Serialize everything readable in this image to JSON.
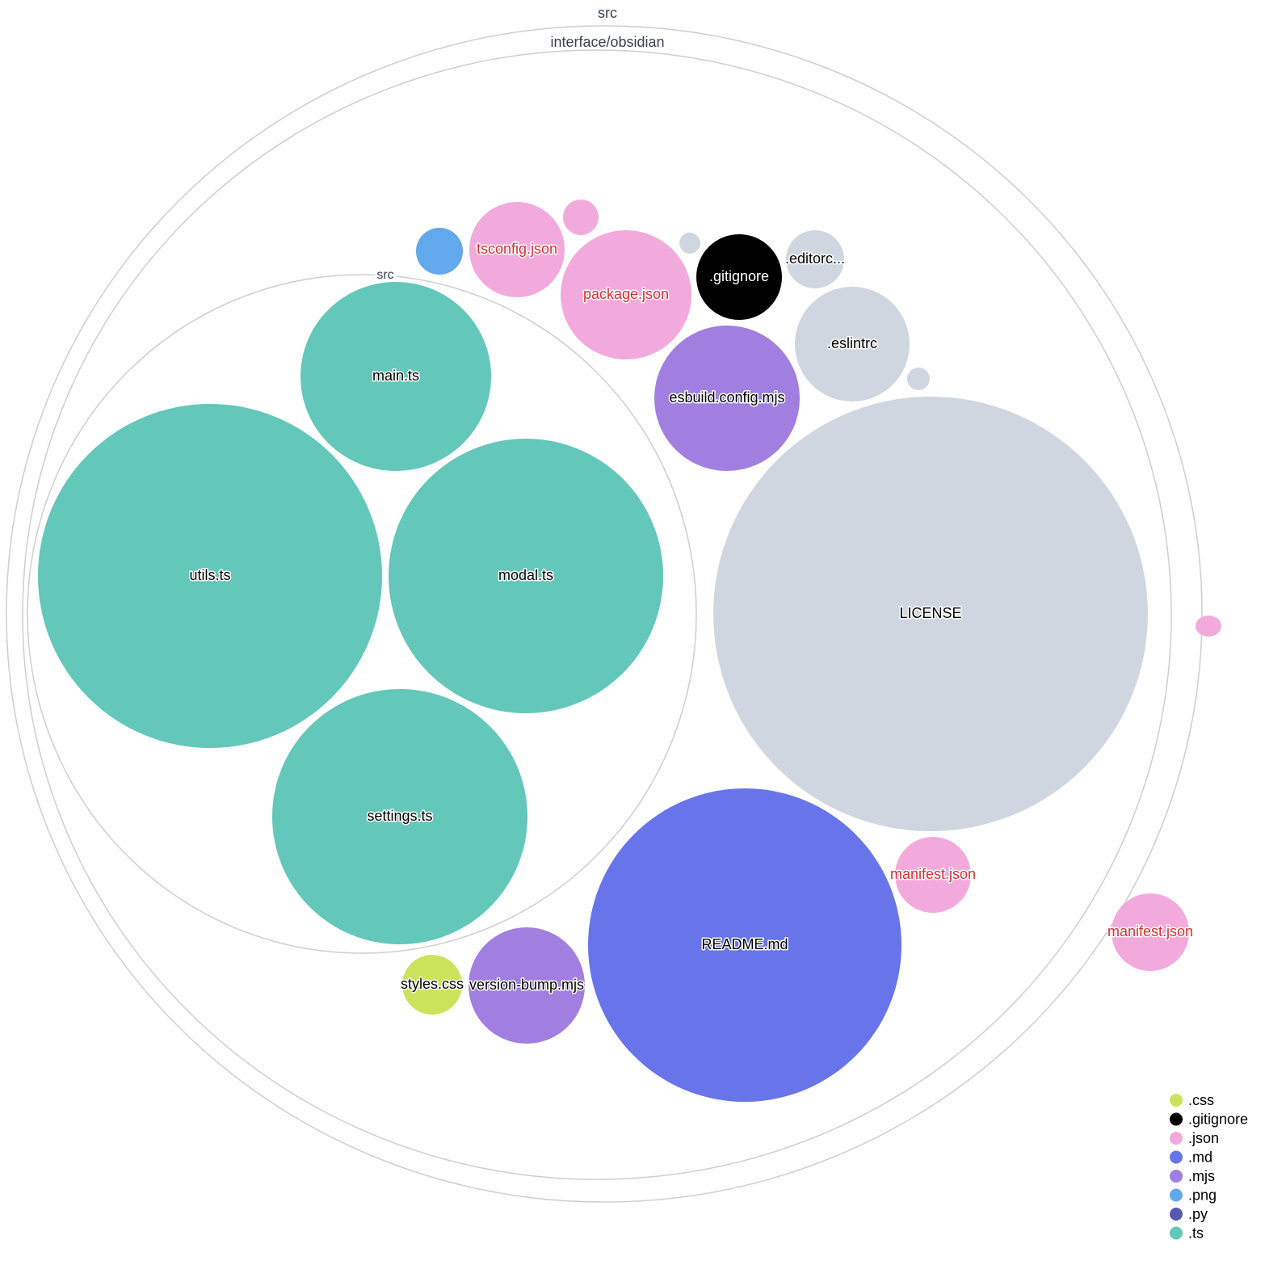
{
  "rings": [
    {
      "label": "src"
    },
    {
      "label": "interface/obsidian"
    },
    {
      "label": "src"
    }
  ],
  "files": [
    {
      "name": "main.ts",
      "ext": ".ts"
    },
    {
      "name": "utils.ts",
      "ext": ".ts"
    },
    {
      "name": "modal.ts",
      "ext": ".ts"
    },
    {
      "name": "settings.ts",
      "ext": ".ts"
    },
    {
      "name": "LICENSE",
      "ext": ""
    },
    {
      "name": "README.md",
      "ext": ".md"
    },
    {
      "name": "esbuild.config.mjs",
      "ext": ".mjs"
    },
    {
      "name": ".eslintrc",
      "ext": ""
    },
    {
      "name": "package.json",
      "ext": ".json"
    },
    {
      "name": "tsconfig.json",
      "ext": ".json"
    },
    {
      "name": "",
      "ext": ".png"
    },
    {
      "name": "",
      "ext": ".json"
    },
    {
      "name": "",
      "ext": ""
    },
    {
      "name": ".gitignore",
      "ext": ".gitignore"
    },
    {
      "name": ".editorc...",
      "ext": ""
    },
    {
      "name": "",
      "ext": ""
    },
    {
      "name": "manifest.json",
      "ext": ".json"
    },
    {
      "name": "manifest.json",
      "ext": ".json"
    },
    {
      "name": "",
      "ext": ".json"
    },
    {
      "name": "version-bump.mjs",
      "ext": ".mjs"
    },
    {
      "name": "styles.css",
      "ext": ".css"
    }
  ],
  "colors": {
    ".css": "#cbe35a",
    ".gitignore": "#000000",
    ".json": "#f2aadc",
    ".md": "#6874ea",
    ".mjs": "#a07fe0",
    ".png": "#62a8ec",
    ".py": "#5558b0",
    ".ts": "#63c7b9",
    "other": "#d0d6e0"
  },
  "legend": [
    {
      "label": ".css",
      "color": "#cbe35a"
    },
    {
      "label": ".gitignore",
      "color": "#000000"
    },
    {
      "label": ".json",
      "color": "#f2aadc"
    },
    {
      "label": ".md",
      "color": "#6874ea"
    },
    {
      "label": ".mjs",
      "color": "#a07fe0"
    },
    {
      "label": ".png",
      "color": "#62a8ec"
    },
    {
      "label": ".py",
      "color": "#5558b0"
    },
    {
      "label": ".ts",
      "color": "#63c7b9"
    }
  ]
}
